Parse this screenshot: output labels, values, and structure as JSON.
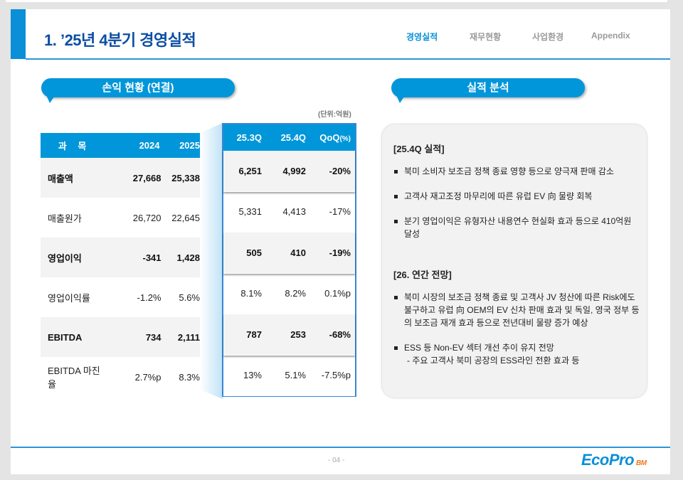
{
  "header": {
    "title": "1. ’25년 4분기 경영실적",
    "nav": [
      "경영실적",
      "재무현황",
      "사업환경",
      "Appendix"
    ],
    "active_nav": "경영실적"
  },
  "left": {
    "pill": "손익 현황 (연결)",
    "unit": "(단위:억원)",
    "headers": [
      "과 목",
      "2024",
      "2025"
    ],
    "rows": [
      {
        "label": "매출액",
        "y2024": "27,668",
        "y2025": "25,338",
        "q3": "6,251",
        "q4": "4,992",
        "qoq": "-20%",
        "bold": true
      },
      {
        "label": "매출원가",
        "y2024": "26,720",
        "y2025": "22,645",
        "q3": "5,331",
        "q4": "4,413",
        "qoq": "-17%",
        "bold": false
      },
      {
        "label": "영업이익",
        "y2024": "-341",
        "y2025": "1,428",
        "q3": "505",
        "q4": "410",
        "qoq": "-19%",
        "bold": true
      },
      {
        "label": "영업이익률",
        "y2024": "-1.2%",
        "y2025": "5.6%",
        "q3": "8.1%",
        "q4": "8.2%",
        "qoq": "0.1%p",
        "bold": false
      },
      {
        "label": "EBITDA",
        "y2024": "734",
        "y2025": "2,111",
        "q3": "787",
        "q4": "253",
        "qoq": "-68%",
        "bold": true
      },
      {
        "label": "EBITDA 마진율",
        "y2024": "2.7%p",
        "y2025": "8.3%",
        "q3": "13%",
        "q4": "5.1%",
        "qoq": "-7.5%p",
        "bold": false
      }
    ],
    "qheaders": [
      "25.3Q",
      "25.4Q",
      "QoQ",
      "(%)"
    ]
  },
  "right": {
    "pill": "실적 분석",
    "sections": [
      {
        "title": "[25.4Q 실적]",
        "bullets": [
          "북미 소비자 보조금 정책 종료 영향 등으로 양극재 판매 감소",
          "고객사 재고조정 마무리에 따른 유럽 EV 向 물량 회복",
          "분기 영업이익은 유형자산 내용연수 현실화 효과 등으로 410억원 달성"
        ]
      },
      {
        "title": "[26. 연간 전망]",
        "bullets": [
          "북미 시장의 보조금 정책 종료 및 고객사 JV 청산에 따른 Risk에도 불구하고 유럽 向 OEM의 EV 신차 판매 효과 및 독일, 영국 정부 등의 보조금 재개 효과 등으로 전년대비 물량 증가 예상",
          "ESS 등 Non-EV 섹터 개선 추이 유지 전망"
        ],
        "sub": "- 주요 고객사 북미 공장의 ESS라인 전환 효과 등"
      }
    ]
  },
  "footer": {
    "page": "- 04 -",
    "logo": "EcoPro",
    "logo_sub": "BM"
  },
  "colors": {
    "accent": "#0096d9",
    "title": "#0b4ea2",
    "logo_orange": "#f07820"
  }
}
